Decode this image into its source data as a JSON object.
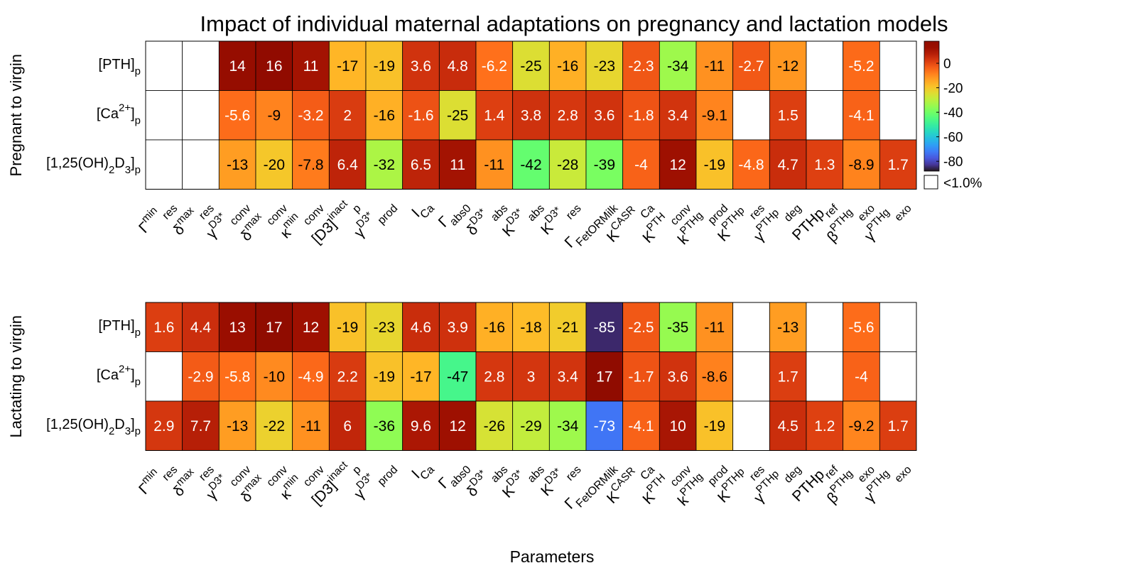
{
  "chart_data": {
    "type": "heatmap",
    "title": "Impact of individual maternal adaptations on pregnancy and lactation models",
    "xlabel": "Parameters",
    "x_tick_labels": [
      {
        "main": "Γ",
        "sup": "min",
        "sub": "res"
      },
      {
        "main": "δ",
        "sup": "max",
        "sub": "res"
      },
      {
        "main": "γ",
        "sup": "D3*",
        "sub": "conv"
      },
      {
        "main": "δ",
        "sup": "max",
        "sub": "conv"
      },
      {
        "main": "κ",
        "sup": "min",
        "sub": "conv"
      },
      {
        "main": "[D3]",
        "sup": "inact",
        "sub": "p"
      },
      {
        "main": "γ",
        "sup": "D3*",
        "sub": "prod"
      },
      {
        "main": "I",
        "sup": "",
        "sub": "Ca"
      },
      {
        "main": "Γ",
        "sup": "",
        "sub": "abs0"
      },
      {
        "main": "δ",
        "sup": "D3*",
        "sub": "abs"
      },
      {
        "main": "K",
        "sup": "D3*",
        "sub": "abs"
      },
      {
        "main": "K",
        "sup": "D3*",
        "sub": "res"
      },
      {
        "main": "Γ",
        "sup": "",
        "sub": "FetORMilk"
      },
      {
        "main": "K",
        "sup": "CASR",
        "sub": "Ca"
      },
      {
        "main": "K",
        "sup": "PTH",
        "sub": "conv"
      },
      {
        "main": "k",
        "sup": "PTHg",
        "sub": "prod"
      },
      {
        "main": "K",
        "sup": "PTHp",
        "sub": "res"
      },
      {
        "main": "γ",
        "sup": "PTHp",
        "sub": "deg"
      },
      {
        "main": "PTHp",
        "sup": "",
        "sub": "ref"
      },
      {
        "main": "β",
        "sup": "PTHg",
        "sub": "exo"
      },
      {
        "main": "γ",
        "sup": "PTHg",
        "sub": "exo"
      }
    ],
    "rows": [
      {
        "main": "[PTH]",
        "sub": "p"
      },
      {
        "main": "[Ca",
        "sup": "2+",
        "close": "]",
        "sub": "p"
      },
      {
        "main": "[1,25(OH)",
        "sub1": "2",
        "mid": "D",
        "sub2": "3",
        "close": "]",
        "sub": "p"
      }
    ],
    "panels": [
      {
        "ylabel": "Pregnant to virgin",
        "values": [
          [
            null,
            null,
            14,
            16,
            11,
            -17,
            -19,
            3.6,
            4.8,
            -6.2,
            -25,
            -16,
            -23,
            -2.3,
            -34,
            -11,
            -2.7,
            -12,
            null,
            -5.2,
            null
          ],
          [
            null,
            null,
            -5.6,
            -9,
            -3.2,
            2,
            -16,
            -1.6,
            -25,
            1.4,
            3.8,
            2.8,
            3.6,
            -1.8,
            3.4,
            -9.1,
            null,
            1.5,
            null,
            -4.1,
            null
          ],
          [
            null,
            null,
            -13,
            -20,
            -7.8,
            6.4,
            -32,
            6.5,
            11,
            -11,
            -42,
            -28,
            -39,
            -4,
            12,
            -19,
            -4.8,
            4.7,
            1.3,
            -8.9,
            1.7
          ]
        ]
      },
      {
        "ylabel": "Lactating to virgin",
        "values": [
          [
            1.6,
            4.4,
            13,
            17,
            12,
            -19,
            -23,
            4.6,
            3.9,
            -16,
            -18,
            -21,
            -85,
            -2.5,
            -35,
            -11,
            null,
            -13,
            null,
            -5.6,
            null
          ],
          [
            null,
            -2.9,
            -5.8,
            -10,
            -4.9,
            2.2,
            -19,
            -17,
            -47,
            2.8,
            3,
            3.4,
            17,
            -1.7,
            3.6,
            -8.6,
            null,
            1.7,
            null,
            -4,
            null
          ],
          [
            2.9,
            7.7,
            -13,
            -22,
            -11,
            6,
            -36,
            9.6,
            12,
            -26,
            -29,
            -34,
            -73,
            -4.1,
            10,
            -19,
            null,
            4.5,
            1.2,
            -9.2,
            1.7
          ]
        ]
      }
    ],
    "colorbar": {
      "colormap": "turbo",
      "ticks": [
        "0",
        "-20",
        "-40",
        "-60",
        "-80"
      ],
      "range": [
        -88,
        18
      ],
      "legend_text": "<1.0%"
    }
  }
}
